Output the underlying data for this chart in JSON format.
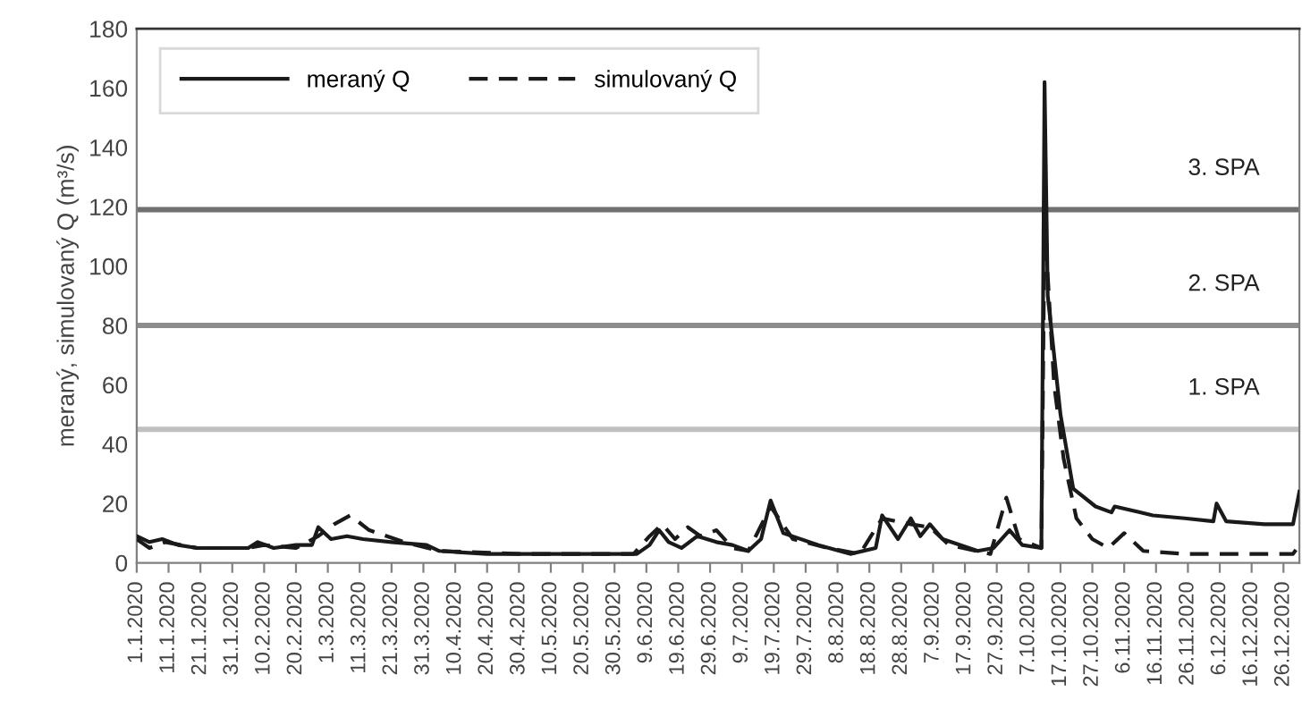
{
  "chart_data": {
    "type": "line",
    "ylabel": "meraný, simulovaný Q (m³/s)",
    "xlim": [
      "2020-01-01",
      "2020-12-31"
    ],
    "ylim": [
      0,
      180
    ],
    "yticks": [
      0,
      20,
      40,
      60,
      80,
      100,
      120,
      140,
      160,
      180
    ],
    "xticks": [
      {
        "value": "2020-01-01",
        "label": "1.1.2020"
      },
      {
        "value": "2020-01-11",
        "label": "11.1.2020"
      },
      {
        "value": "2020-01-21",
        "label": "21.1.2020"
      },
      {
        "value": "2020-01-31",
        "label": "31.1.2020"
      },
      {
        "value": "2020-02-10",
        "label": "10.2.2020"
      },
      {
        "value": "2020-02-20",
        "label": "20.2.2020"
      },
      {
        "value": "2020-03-01",
        "label": "1.3.2020"
      },
      {
        "value": "2020-03-11",
        "label": "11.3.2020"
      },
      {
        "value": "2020-03-21",
        "label": "21.3.2020"
      },
      {
        "value": "2020-03-31",
        "label": "31.3.2020"
      },
      {
        "value": "2020-04-10",
        "label": "10.4.2020"
      },
      {
        "value": "2020-04-20",
        "label": "20.4.2020"
      },
      {
        "value": "2020-04-30",
        "label": "30.4.2020"
      },
      {
        "value": "2020-05-10",
        "label": "10.5.2020"
      },
      {
        "value": "2020-05-20",
        "label": "20.5.2020"
      },
      {
        "value": "2020-05-30",
        "label": "30.5.2020"
      },
      {
        "value": "2020-06-09",
        "label": "9.6.2020"
      },
      {
        "value": "2020-06-19",
        "label": "19.6.2020"
      },
      {
        "value": "2020-06-29",
        "label": "29.6.2020"
      },
      {
        "value": "2020-07-09",
        "label": "9.7.2020"
      },
      {
        "value": "2020-07-19",
        "label": "19.7.2020"
      },
      {
        "value": "2020-07-29",
        "label": "29.7.2020"
      },
      {
        "value": "2020-08-08",
        "label": "8.8.2020"
      },
      {
        "value": "2020-08-18",
        "label": "18.8.2020"
      },
      {
        "value": "2020-08-28",
        "label": "28.8.2020"
      },
      {
        "value": "2020-09-07",
        "label": "7.9.2020"
      },
      {
        "value": "2020-09-17",
        "label": "17.9.2020"
      },
      {
        "value": "2020-09-27",
        "label": "27.9.2020"
      },
      {
        "value": "2020-10-07",
        "label": "7.10.2020"
      },
      {
        "value": "2020-10-17",
        "label": "17.10.2020"
      },
      {
        "value": "2020-10-27",
        "label": "27.10.2020"
      },
      {
        "value": "2020-11-06",
        "label": "6.11.2020"
      },
      {
        "value": "2020-11-16",
        "label": "16.11.2020"
      },
      {
        "value": "2020-11-26",
        "label": "26.11.2020"
      },
      {
        "value": "2020-12-06",
        "label": "6.12.2020"
      },
      {
        "value": "2020-12-16",
        "label": "16.12.2020"
      },
      {
        "value": "2020-12-26",
        "label": "26.12.2020"
      }
    ],
    "legend": "top left",
    "marker": "none",
    "grid": false,
    "ref_lines": [
      {
        "axis": "y",
        "value": 45,
        "label": "1. SPA",
        "color": "#c0c0c0"
      },
      {
        "axis": "y",
        "value": 80,
        "label": "2. SPA",
        "color": "#8c8c8c"
      },
      {
        "axis": "y",
        "value": 119,
        "label": "3. SPA",
        "color": "#707070"
      }
    ],
    "series": [
      {
        "name": "meraný Q",
        "color": "#1a1a1a",
        "line_style": "solid",
        "x": [
          "2020-01-01",
          "2020-01-05",
          "2020-01-09",
          "2020-01-14",
          "2020-01-20",
          "2020-01-28",
          "2020-02-05",
          "2020-02-08",
          "2020-02-13",
          "2020-02-20",
          "2020-02-25",
          "2020-02-27",
          "2020-03-02",
          "2020-03-07",
          "2020-03-12",
          "2020-03-21",
          "2020-04-01",
          "2020-04-05",
          "2020-04-20",
          "2020-05-05",
          "2020-05-20",
          "2020-06-06",
          "2020-06-10",
          "2020-06-13",
          "2020-06-16",
          "2020-06-20",
          "2020-06-25",
          "2020-07-01",
          "2020-07-06",
          "2020-07-11",
          "2020-07-15",
          "2020-07-18",
          "2020-07-22",
          "2020-08-02",
          "2020-08-12",
          "2020-08-20",
          "2020-08-22",
          "2020-08-27",
          "2020-08-31",
          "2020-09-03",
          "2020-09-06",
          "2020-09-10",
          "2020-09-21",
          "2020-09-26",
          "2020-10-01",
          "2020-10-05",
          "2020-10-11",
          "2020-10-12",
          "2020-10-13",
          "2020-10-14",
          "2020-10-15",
          "2020-10-17",
          "2020-10-21",
          "2020-10-28",
          "2020-11-02",
          "2020-11-03",
          "2020-11-15",
          "2020-11-25",
          "2020-12-04",
          "2020-12-05",
          "2020-12-08",
          "2020-12-20",
          "2020-12-29",
          "2020-12-31"
        ],
        "values": [
          9,
          7,
          8,
          6,
          5,
          5,
          5,
          7,
          5,
          6,
          6,
          12,
          8,
          9,
          8,
          7,
          6,
          4,
          3,
          3,
          3,
          3,
          6,
          11,
          7,
          5,
          9,
          7,
          6,
          4,
          8,
          21,
          10,
          6,
          3,
          5,
          16,
          8,
          15,
          9,
          13,
          8,
          4,
          5,
          11,
          6,
          5,
          162,
          90,
          80,
          70,
          50,
          25,
          19,
          17,
          19,
          16,
          15,
          14,
          20,
          14,
          13,
          13,
          24
        ]
      },
      {
        "name": "simulovaný Q",
        "color": "#1a1a1a",
        "line_style": "dashed",
        "x": [
          "2020-01-01",
          "2020-01-05",
          "2020-01-10",
          "2020-01-20",
          "2020-02-05",
          "2020-02-10",
          "2020-02-20",
          "2020-02-27",
          "2020-03-03",
          "2020-03-08",
          "2020-03-14",
          "2020-03-25",
          "2020-04-05",
          "2020-05-01",
          "2020-06-05",
          "2020-06-10",
          "2020-06-14",
          "2020-06-18",
          "2020-06-22",
          "2020-06-26",
          "2020-07-01",
          "2020-07-06",
          "2020-07-11",
          "2020-07-18",
          "2020-07-25",
          "2020-08-05",
          "2020-08-15",
          "2020-08-22",
          "2020-08-31",
          "2020-09-06",
          "2020-09-12",
          "2020-09-25",
          "2020-09-30",
          "2020-10-04",
          "2020-10-11",
          "2020-10-12",
          "2020-10-15",
          "2020-10-18",
          "2020-10-22",
          "2020-10-27",
          "2020-11-01",
          "2020-11-06",
          "2020-11-12",
          "2020-11-25",
          "2020-12-29",
          "2020-12-31"
        ],
        "values": [
          8,
          5,
          7,
          5,
          5,
          6,
          5,
          9,
          13,
          16,
          11,
          7,
          4,
          3,
          3,
          9,
          13,
          8,
          12,
          9,
          11,
          5,
          4,
          19,
          8,
          5,
          3,
          15,
          13,
          12,
          6,
          3,
          22,
          8,
          5,
          115,
          60,
          35,
          15,
          8,
          5,
          10,
          4,
          3,
          3,
          6
        ]
      }
    ]
  }
}
